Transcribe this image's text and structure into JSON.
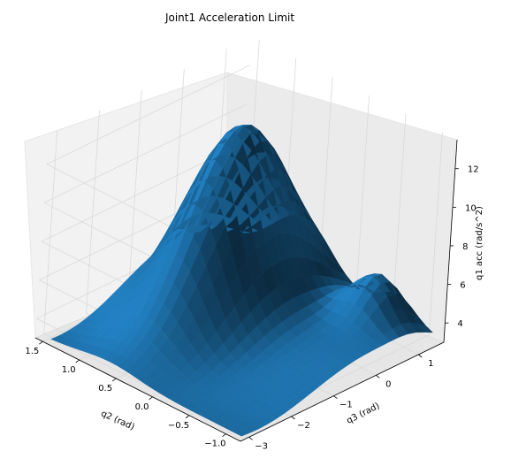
{
  "chart_data": {
    "type": "surface3d",
    "title": "Joint1 Acceleration Limit",
    "xlabel": "q2 (rad)",
    "ylabel": "q3 (rad)",
    "zlabel": "q1 acc (rad/s^2)",
    "x_ticks": [
      "−1.0",
      "−0.5",
      "0.0",
      "0.5",
      "1.0",
      "1.5"
    ],
    "y_ticks": [
      "−3",
      "−2",
      "−1",
      "0",
      "1"
    ],
    "z_ticks": [
      "4",
      "6",
      "8",
      "10",
      "12"
    ],
    "xlim": [
      -1.2,
      1.6
    ],
    "ylim": [
      -3.2,
      1.6
    ],
    "zlim": [
      3.0,
      13.5
    ],
    "grid": true,
    "colors": {
      "surface": "#1f77b4",
      "pane": "#f2f2f2",
      "grid": "#d9d9d9",
      "edge": "#000000"
    }
  }
}
